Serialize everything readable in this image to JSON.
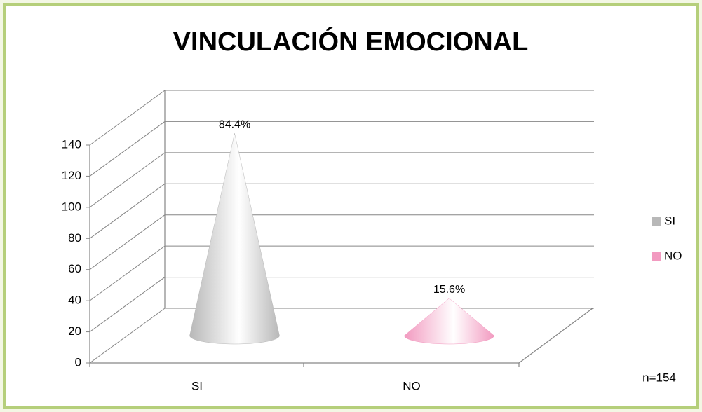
{
  "chart_data": {
    "type": "cone",
    "title": "VINCULACIÓN EMOCIONAL",
    "categories": [
      "SI",
      "NO"
    ],
    "values": [
      130,
      24
    ],
    "value_labels": [
      "84.4%",
      "15.6%"
    ],
    "colors": [
      "#b8b8b8",
      "#f29ac0"
    ],
    "ylim": [
      0,
      140
    ],
    "yticks": [
      0,
      20,
      40,
      60,
      80,
      100,
      120,
      140
    ],
    "grid": true,
    "legend": "right",
    "annotation": "n=154"
  }
}
